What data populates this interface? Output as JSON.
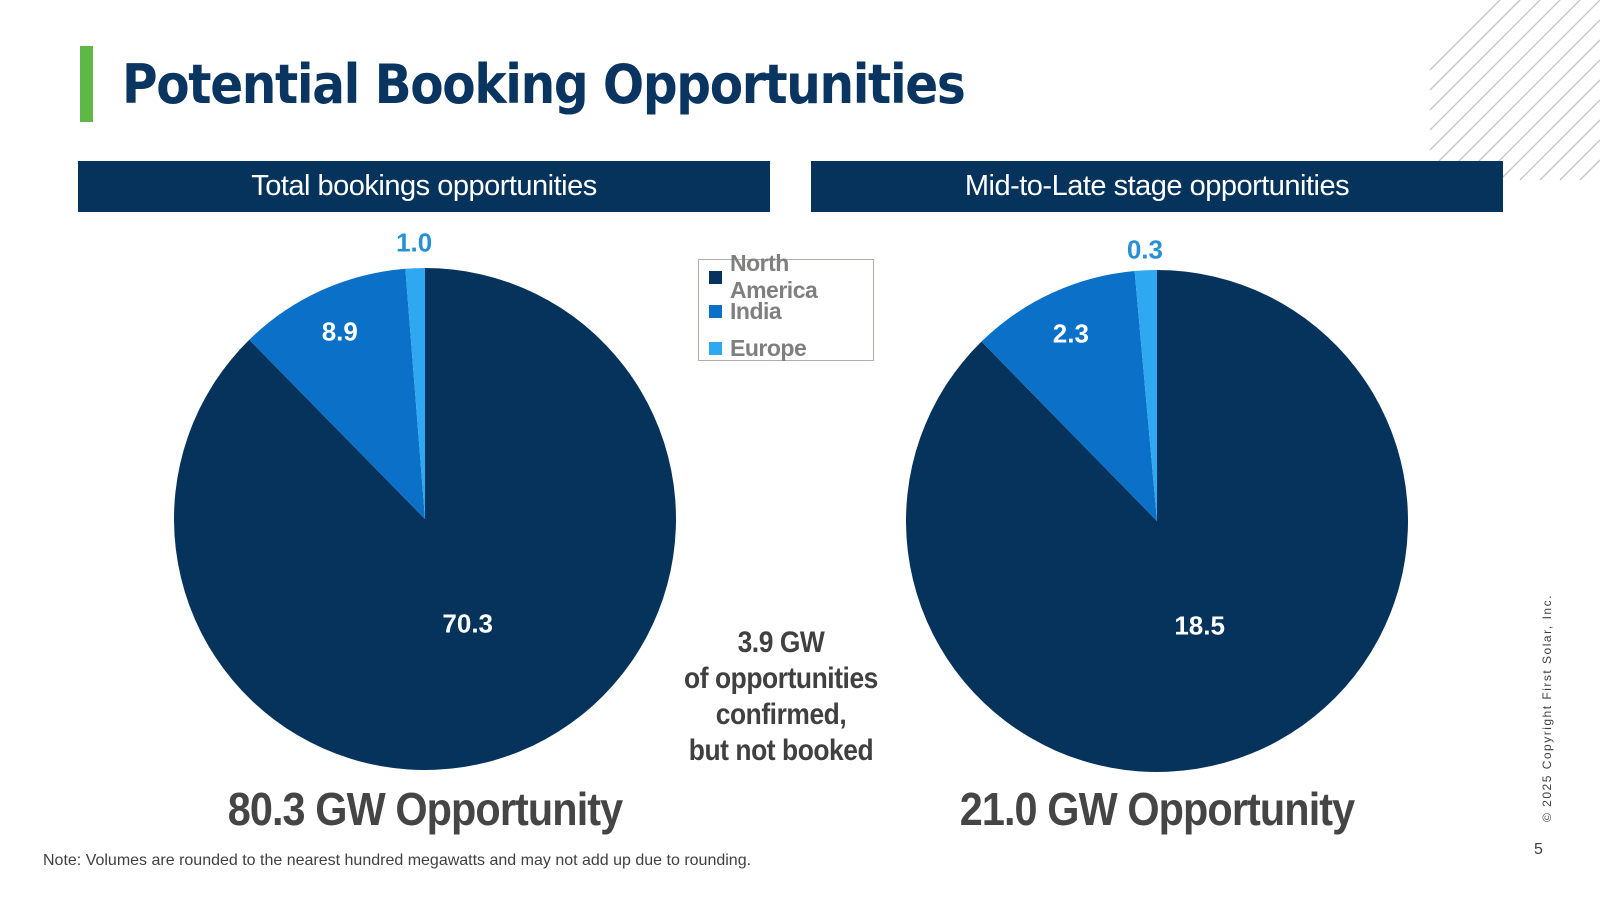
{
  "title": "Potential Booking Opportunities",
  "colors": {
    "accent": "#5fb846",
    "header_bg": "#06335c",
    "north_america": "#06335c",
    "india": "#0b70c8",
    "europe": "#2ea8f0"
  },
  "legend": {
    "items": [
      {
        "label": "North America",
        "color": "#06335c"
      },
      {
        "label": "India",
        "color": "#0b70c8"
      },
      {
        "label": "Europe",
        "color": "#2ea8f0"
      }
    ]
  },
  "center_note": {
    "lines": [
      "3.9 GW",
      "of opportunities",
      "confirmed,",
      "but not booked"
    ]
  },
  "chart_data": [
    {
      "type": "pie",
      "title": "Total bookings opportunities",
      "categories": [
        "North America",
        "India",
        "Europe"
      ],
      "values": [
        70.3,
        8.9,
        1.0
      ],
      "value_labels": [
        "70.3",
        "8.9",
        "1.0"
      ],
      "total_label": "80.3 GW Opportunity"
    },
    {
      "type": "pie",
      "title": "Mid-to-Late stage opportunities",
      "categories": [
        "North America",
        "India",
        "Europe"
      ],
      "values": [
        18.5,
        2.3,
        0.3
      ],
      "value_labels": [
        "18.5",
        "2.3",
        "0.3"
      ],
      "total_label": "21.0 GW Opportunity"
    }
  ],
  "footer": {
    "note": "Note: Volumes are rounded to the nearest hundred megawatts and may not add up due to rounding.",
    "copyright": "© 2025 Copyright First Solar, Inc.",
    "page_number": "5"
  }
}
